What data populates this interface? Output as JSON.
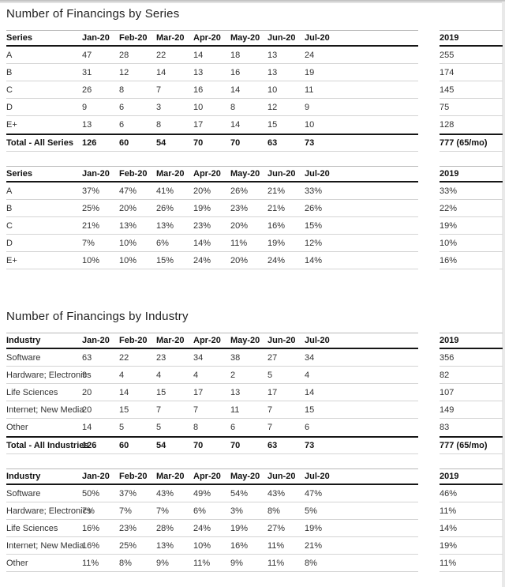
{
  "colors": {
    "heavy_line": "#161616",
    "light_line": "#d4d4d4",
    "text": "#333333"
  },
  "report": {
    "sections": [
      {
        "title": "Number of Financings by Series",
        "tables": [
          {
            "label_header": "Series",
            "month_headers": [
              "Jan-20",
              "Feb-20",
              "Mar-20",
              "Apr-20",
              "May-20",
              "Jun-20",
              "Jul-20"
            ],
            "year_header": "2019",
            "rows": [
              {
                "label": "A",
                "values": [
                  "47",
                  "28",
                  "22",
                  "14",
                  "18",
                  "13",
                  "24"
                ],
                "year": "255"
              },
              {
                "label": "B",
                "values": [
                  "31",
                  "12",
                  "14",
                  "13",
                  "16",
                  "13",
                  "19"
                ],
                "year": "174"
              },
              {
                "label": "C",
                "values": [
                  "26",
                  "8",
                  "7",
                  "16",
                  "14",
                  "10",
                  "11"
                ],
                "year": "145"
              },
              {
                "label": "D",
                "values": [
                  "9",
                  "6",
                  "3",
                  "10",
                  "8",
                  "12",
                  "9"
                ],
                "year": "75"
              },
              {
                "label": "E+",
                "values": [
                  "13",
                  "6",
                  "8",
                  "17",
                  "14",
                  "15",
                  "10"
                ],
                "year": "128"
              }
            ],
            "total": {
              "label": "Total - All Series",
              "values": [
                "126",
                "60",
                "54",
                "70",
                "70",
                "63",
                "73"
              ],
              "year": "777 (65/mo)"
            }
          },
          {
            "label_header": "Series",
            "month_headers": [
              "Jan-20",
              "Feb-20",
              "Mar-20",
              "Apr-20",
              "May-20",
              "Jun-20",
              "Jul-20"
            ],
            "year_header": "2019",
            "rows": [
              {
                "label": "A",
                "values": [
                  "37%",
                  "47%",
                  "41%",
                  "20%",
                  "26%",
                  "21%",
                  "33%"
                ],
                "year": "33%"
              },
              {
                "label": "B",
                "values": [
                  "25%",
                  "20%",
                  "26%",
                  "19%",
                  "23%",
                  "21%",
                  "26%"
                ],
                "year": "22%"
              },
              {
                "label": "C",
                "values": [
                  "21%",
                  "13%",
                  "13%",
                  "23%",
                  "20%",
                  "16%",
                  "15%"
                ],
                "year": "19%"
              },
              {
                "label": "D",
                "values": [
                  "7%",
                  "10%",
                  "6%",
                  "14%",
                  "11%",
                  "19%",
                  "12%"
                ],
                "year": "10%"
              },
              {
                "label": "E+",
                "values": [
                  "10%",
                  "10%",
                  "15%",
                  "24%",
                  "20%",
                  "24%",
                  "14%"
                ],
                "year": "16%"
              }
            ]
          }
        ]
      },
      {
        "title": "Number of Financings by Industry",
        "tables": [
          {
            "label_header": "Industry",
            "month_headers": [
              "Jan-20",
              "Feb-20",
              "Mar-20",
              "Apr-20",
              "May-20",
              "Jun-20",
              "Jul-20"
            ],
            "year_header": "2019",
            "rows": [
              {
                "label": "Software",
                "values": [
                  "63",
                  "22",
                  "23",
                  "34",
                  "38",
                  "27",
                  "34"
                ],
                "year": "356"
              },
              {
                "label": "Hardware; Electronics",
                "values": [
                  "9",
                  "4",
                  "4",
                  "4",
                  "2",
                  "5",
                  "4"
                ],
                "year": "82"
              },
              {
                "label": "Life Sciences",
                "values": [
                  "20",
                  "14",
                  "15",
                  "17",
                  "13",
                  "17",
                  "14"
                ],
                "year": "107"
              },
              {
                "label": "Internet; New Media",
                "values": [
                  "20",
                  "15",
                  "7",
                  "7",
                  "11",
                  "7",
                  "15"
                ],
                "year": "149"
              },
              {
                "label": "Other",
                "values": [
                  "14",
                  "5",
                  "5",
                  "8",
                  "6",
                  "7",
                  "6"
                ],
                "year": "83"
              }
            ],
            "total": {
              "label": "Total - All Industries",
              "values": [
                "126",
                "60",
                "54",
                "70",
                "70",
                "63",
                "73"
              ],
              "year": "777 (65/mo)"
            }
          },
          {
            "label_header": "Industry",
            "month_headers": [
              "Jan-20",
              "Feb-20",
              "Mar-20",
              "Apr-20",
              "May-20",
              "Jun-20",
              "Jul-20"
            ],
            "year_header": "2019",
            "rows": [
              {
                "label": "Software",
                "values": [
                  "50%",
                  "37%",
                  "43%",
                  "49%",
                  "54%",
                  "43%",
                  "47%"
                ],
                "year": "46%"
              },
              {
                "label": "Hardware; Electronics",
                "values": [
                  "7%",
                  "7%",
                  "7%",
                  "6%",
                  "3%",
                  "8%",
                  "5%"
                ],
                "year": "11%"
              },
              {
                "label": "Life Sciences",
                "values": [
                  "16%",
                  "23%",
                  "28%",
                  "24%",
                  "19%",
                  "27%",
                  "19%"
                ],
                "year": "14%"
              },
              {
                "label": "Internet; New Media",
                "values": [
                  "16%",
                  "25%",
                  "13%",
                  "10%",
                  "16%",
                  "11%",
                  "21%"
                ],
                "year": "19%"
              },
              {
                "label": "Other",
                "values": [
                  "11%",
                  "8%",
                  "9%",
                  "11%",
                  "9%",
                  "11%",
                  "8%"
                ],
                "year": "11%"
              }
            ]
          }
        ]
      }
    ]
  }
}
